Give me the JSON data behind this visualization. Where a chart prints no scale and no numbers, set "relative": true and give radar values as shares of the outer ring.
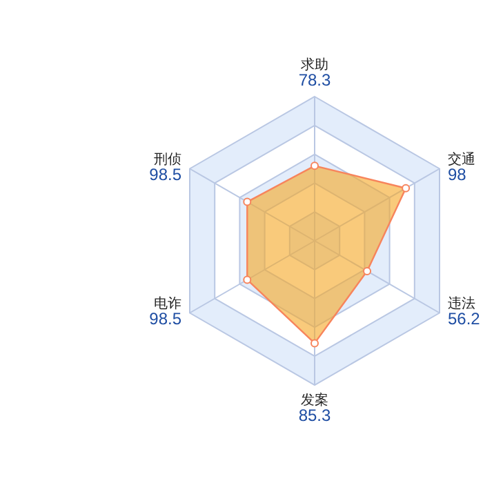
{
  "chart_data": {
    "type": "radar",
    "categories": [
      "求助\n78.3",
      "交通\n98",
      "违法\n56.2",
      "发案\n85.3",
      "电诈\n98.5",
      "刑侦\n98.5"
    ],
    "series": [
      {
        "color": "#f5a623",
        "values": [
          0.52,
          0.73,
          0.42,
          0.71,
          0.54,
          0.54
        ]
      }
    ],
    "relative": true,
    "grid": true,
    "marker": "circle"
  }
}
